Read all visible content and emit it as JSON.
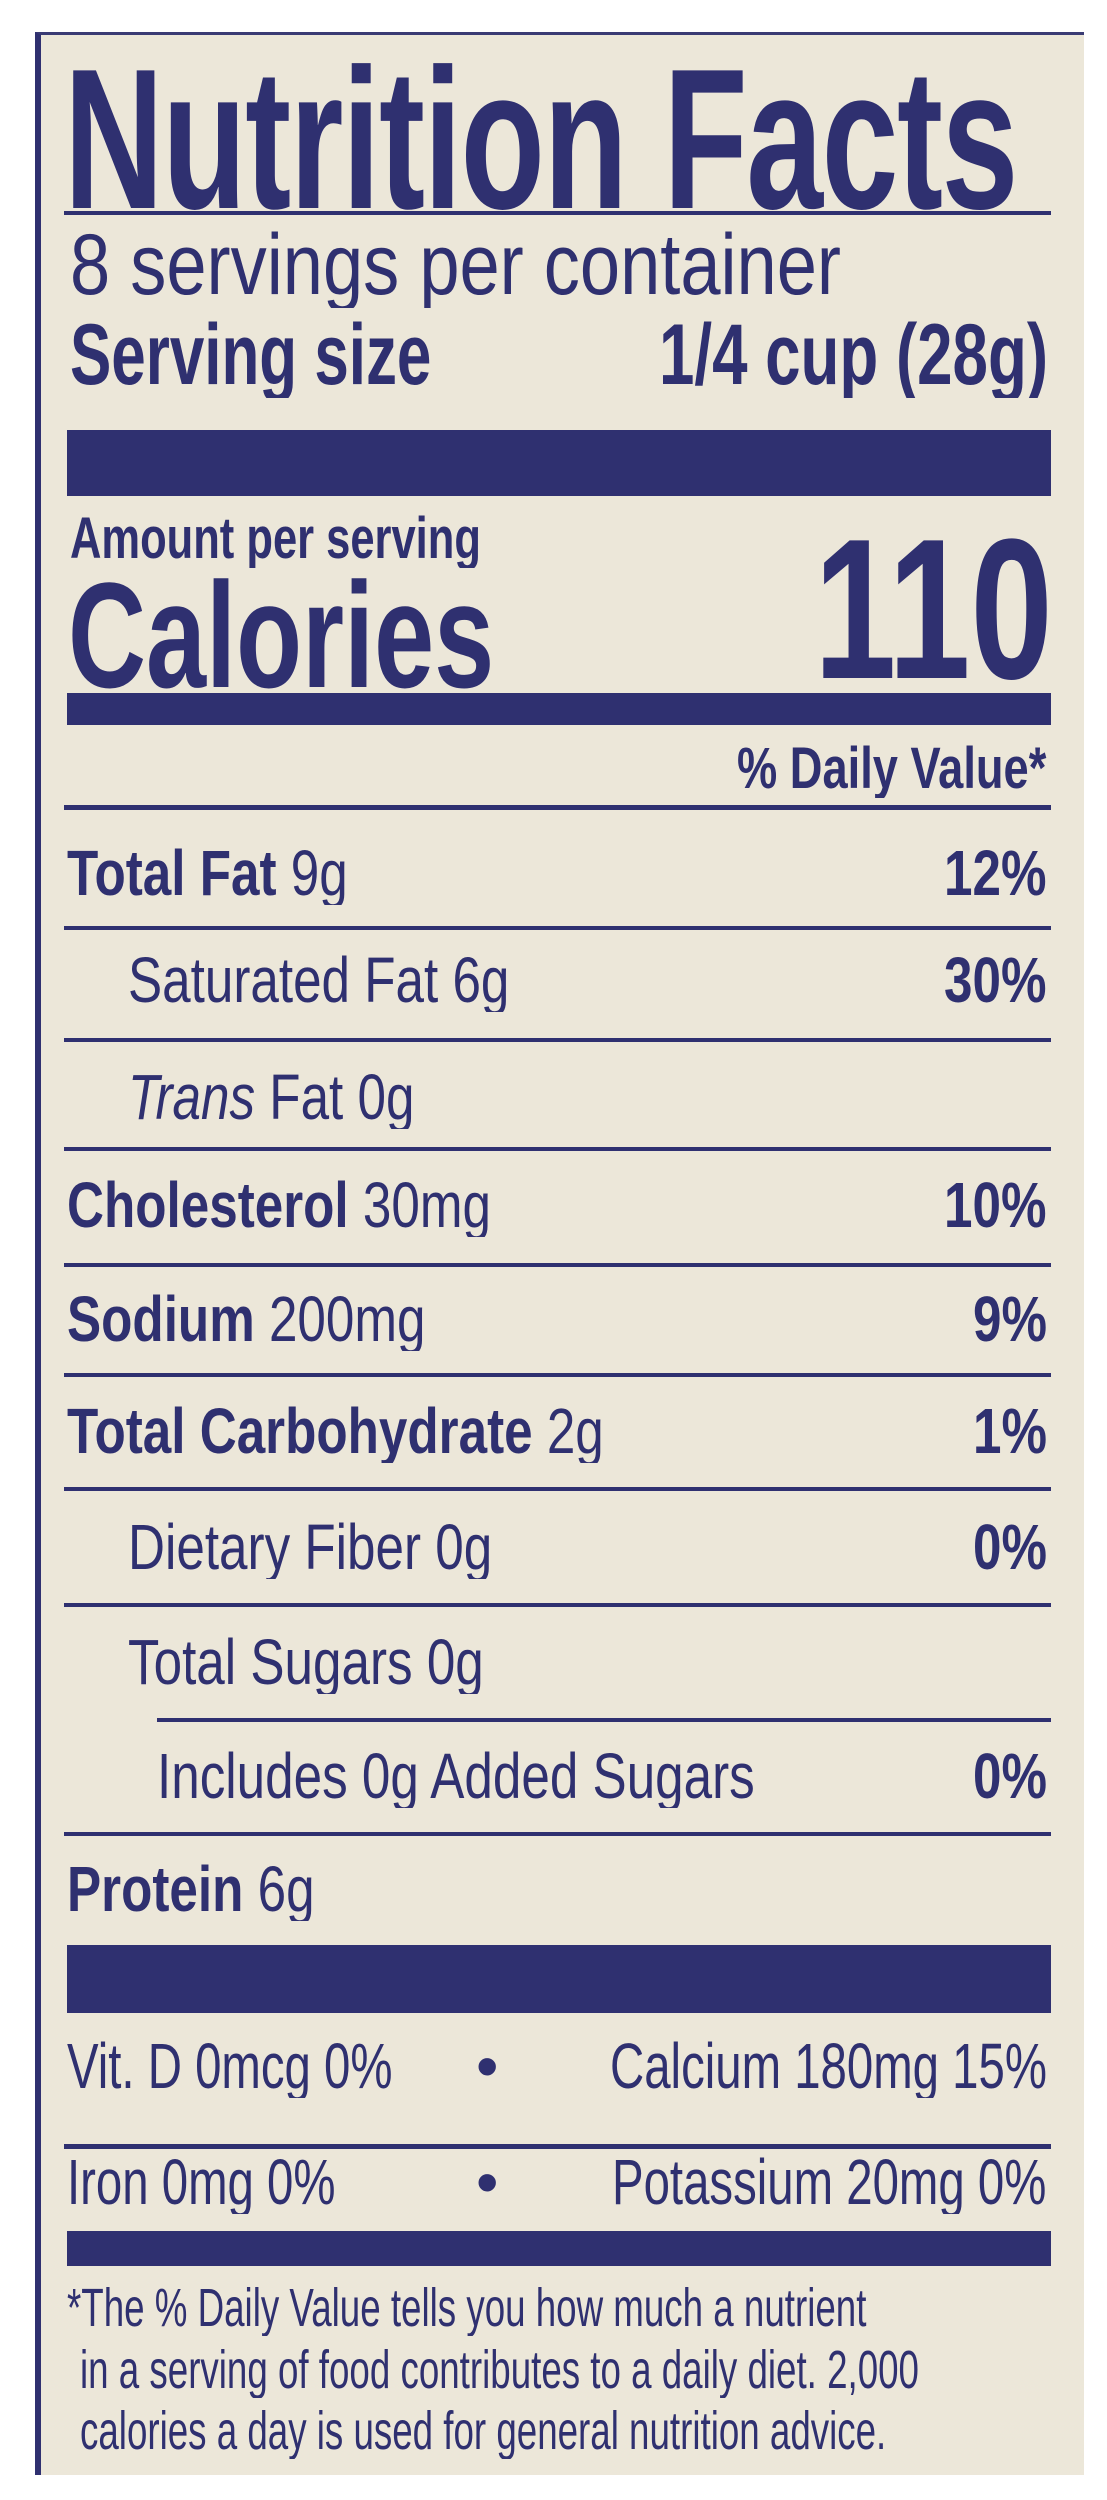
{
  "title": "Nutrition Facts",
  "servings_per_container": "8 servings per container",
  "serving_size_label": "Serving size",
  "serving_size_value": "1/4 cup (28g)",
  "amount_per_serving": "Amount per serving",
  "calories_label": "Calories",
  "calories_value": "110",
  "daily_value_header": "% Daily Value*",
  "nutrients": [
    {
      "name": "Total Fat",
      "amount": "9g",
      "dv": "12%",
      "level": 0
    },
    {
      "name": "Saturated Fat",
      "amount": "6g",
      "dv": "30%",
      "level": 1
    },
    {
      "name": "Trans",
      "name_suffix": "Fat",
      "amount": "0g",
      "dv": "",
      "level": 1,
      "italic_prefix": true
    },
    {
      "name": "Cholesterol",
      "amount": "30mg",
      "dv": "10%",
      "level": 0
    },
    {
      "name": "Sodium",
      "amount": "200mg",
      "dv": "9%",
      "level": 0
    },
    {
      "name": "Total Carbohydrate",
      "amount": "2g",
      "dv": "1%",
      "level": 0
    },
    {
      "name": "Dietary Fiber",
      "amount": "0g",
      "dv": "0%",
      "level": 1
    },
    {
      "name": "Total Sugars",
      "amount": "0g",
      "dv": "",
      "level": 1
    },
    {
      "name": "Includes 0g Added Sugars",
      "amount": "",
      "dv": "0%",
      "level": 2
    },
    {
      "name": "Protein",
      "amount": "6g",
      "dv": "",
      "level": 0
    }
  ],
  "vitamins": [
    {
      "left": "Vit. D 0mcg 0%",
      "right": "Calcium 180mg 15%"
    },
    {
      "left": "Iron 0mg 0%",
      "right": "Potassium 20mg 0%"
    }
  ],
  "bullet": "•",
  "footnote": [
    "*The % Daily Value tells you how much a nutrient",
    "in a serving of food contributes to a daily diet. 2,000",
    "calories a day is used for general nutrition advice."
  ],
  "colors": {
    "ink": "#2f3070",
    "label_background": "#ece7d9"
  }
}
